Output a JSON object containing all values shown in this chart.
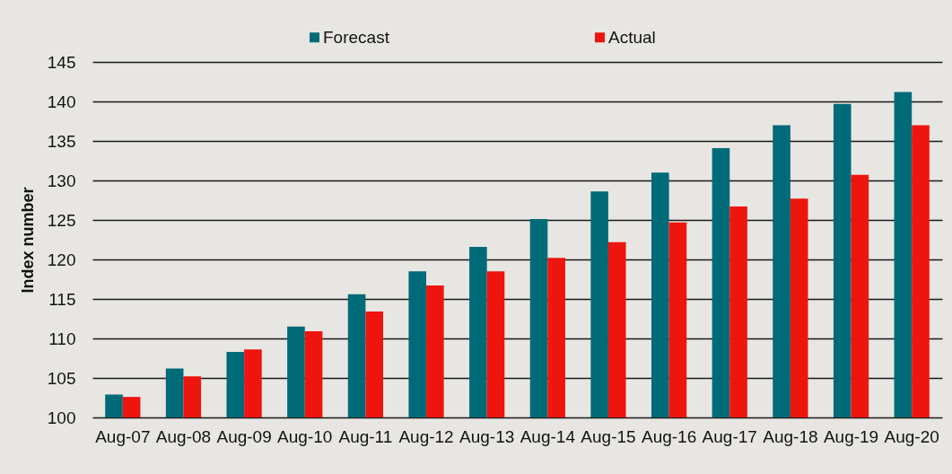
{
  "chart_data": {
    "type": "bar",
    "ylabel": "Index number",
    "categories": [
      "Aug-07",
      "Aug-08",
      "Aug-09",
      "Aug-10",
      "Aug-11",
      "Aug-12",
      "Aug-13",
      "Aug-14",
      "Aug-15",
      "Aug-16",
      "Aug-17",
      "Aug-18",
      "Aug-19",
      "Aug-20"
    ],
    "series": [
      {
        "name": "Forecast",
        "color": "#006b78",
        "values": [
          102.9,
          106.2,
          108.3,
          111.5,
          115.6,
          118.5,
          121.6,
          125.1,
          128.6,
          131.0,
          134.1,
          137.0,
          139.7,
          141.2
        ]
      },
      {
        "name": "Actual",
        "color": "#ee150e",
        "values": [
          102.6,
          105.2,
          108.6,
          110.9,
          113.4,
          116.7,
          118.5,
          120.2,
          122.2,
          124.7,
          126.7,
          127.7,
          130.7,
          137.0
        ]
      }
    ],
    "ylim": [
      100,
      145
    ],
    "yticks": [
      100,
      105,
      110,
      115,
      120,
      125,
      130,
      135,
      140,
      145
    ],
    "grid": "y",
    "legend": "top"
  }
}
